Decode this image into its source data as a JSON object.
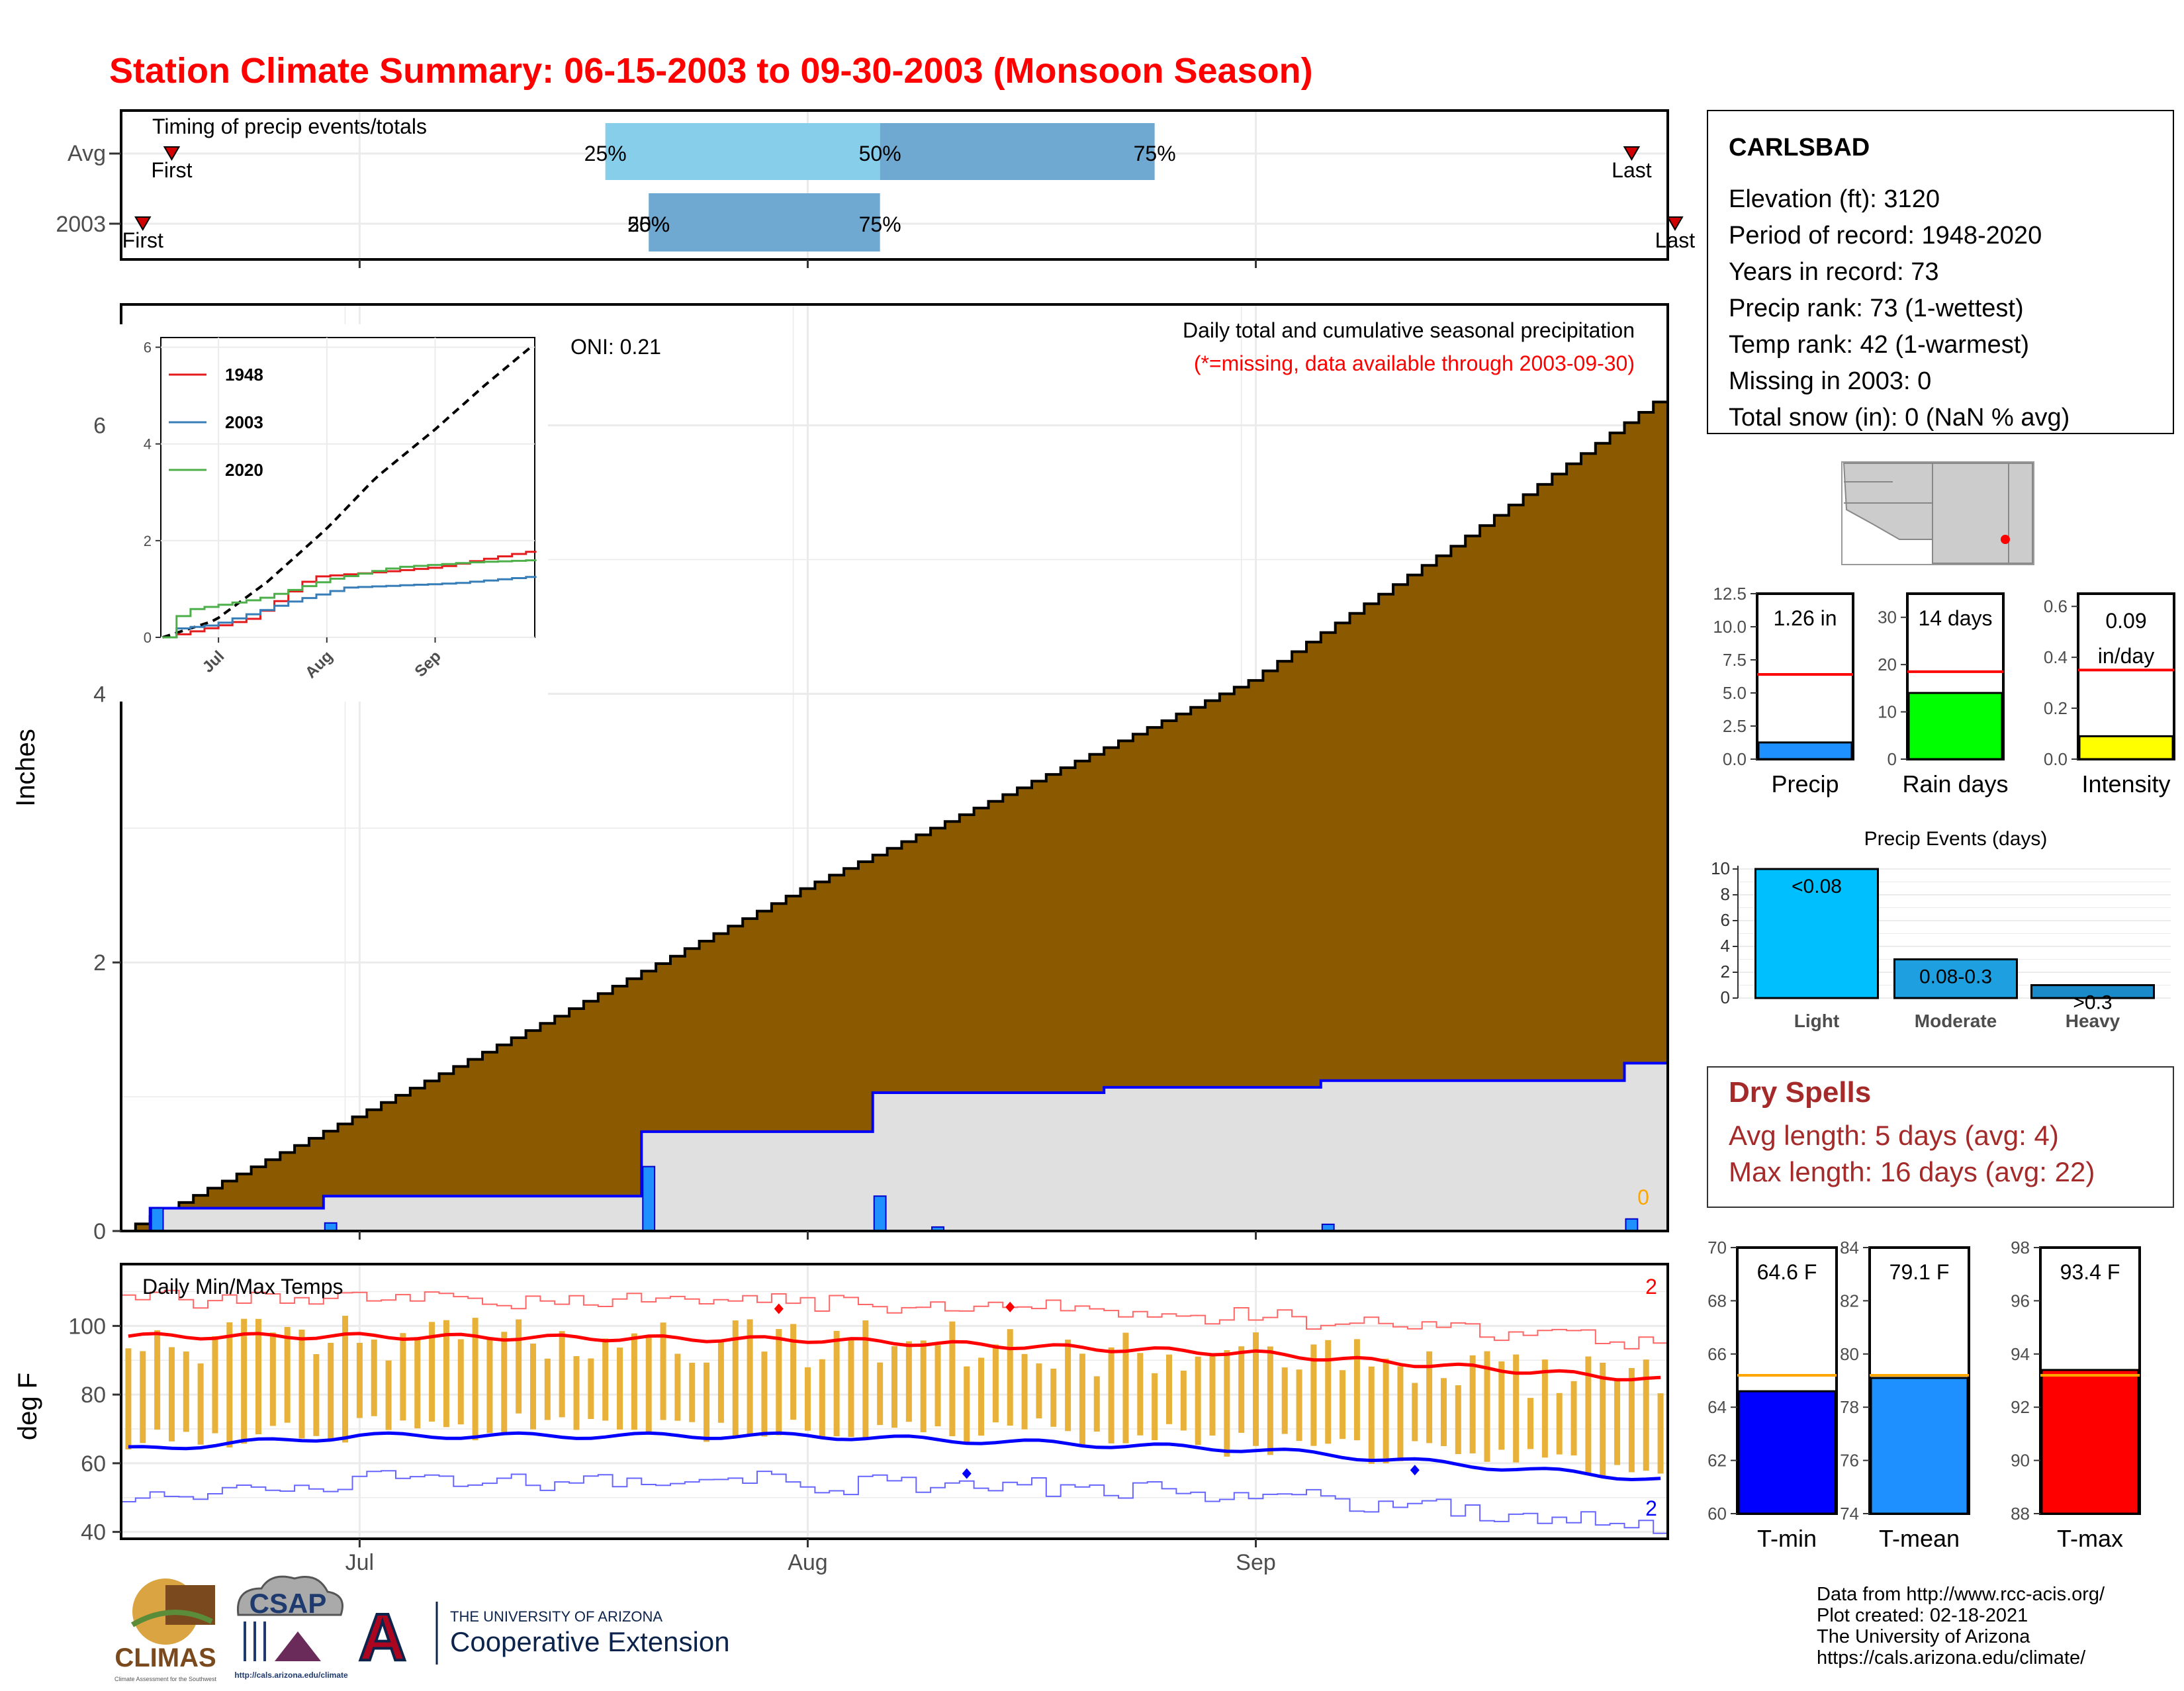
{
  "title": "Station Climate Summary: 06-15-2003 to 09-30-2003 (Monsoon Season)",
  "colors": {
    "title_red": "#ff0000",
    "cumulative_avg_fill": "#8b5a00",
    "year_area_fill": "#e0e0e0",
    "year_line": "#0000ff",
    "daily_bar": "#1e90ff",
    "timing_light": "#87ceeb",
    "timing_dark": "#6fa8d0",
    "temp_bar": "#e8b23a",
    "dry_spell_text": "#a52a2a",
    "precip_bar": "#1e90ff",
    "raindays_bar": "#00ff00",
    "intensity_bar": "#ffff00",
    "events_bar": "#00bfff",
    "tmin_bar": "#0000ff",
    "tmean_bar": "#1e90ff",
    "tmax_bar": "#ff0000",
    "avg_line_red": "#ff0000",
    "avg_line_orange": "#ffa500"
  },
  "timing": {
    "title": "Timing of precip events/totals",
    "rows": [
      {
        "label": "Avg",
        "first": "Jun 18",
        "last": "Sep 27",
        "q25": "Jul 18",
        "q50": "Aug 6",
        "q75": "Aug 25",
        "p25": "25%",
        "p50": "50%",
        "p75": "75%",
        "first_label": "First",
        "last_label": "Last"
      },
      {
        "label": "2003",
        "first": "Jun 16",
        "last": "Sep 30",
        "q25": "Jul 21",
        "q50": "Jul 21",
        "q75": "Aug 6",
        "p25": "25%",
        "p50": "50%",
        "p75": "75%",
        "first_label": "First",
        "last_label": "Last"
      }
    ]
  },
  "main_chart": {
    "ylabel": "Inches",
    "subtitle_line1": "Daily total and cumulative seasonal precipitation",
    "subtitle_line2": "(*=missing, data available through 2003-09-30)",
    "oni_label": "ONI: 0.21",
    "missing_count": "0",
    "x_ticks": [
      "Jul",
      "Aug",
      "Sep"
    ],
    "y_ticks": [
      "0",
      "2",
      "4",
      "6"
    ],
    "inset": {
      "legend": [
        "1948",
        "2003",
        "2020"
      ],
      "legend_colors": [
        "#e41a1c",
        "#377eb8",
        "#4daf4a"
      ],
      "y_ticks": [
        "0",
        "2",
        "4",
        "6"
      ],
      "x_ticks": [
        "Jul",
        "Aug",
        "Sep"
      ]
    }
  },
  "chart_data": [
    {
      "type": "area",
      "title": "Daily total and cumulative seasonal precipitation",
      "ylabel": "Inches",
      "x_range": [
        "2003-06-15",
        "2003-09-30"
      ],
      "ylim": [
        0,
        6.9
      ],
      "series": [
        {
          "name": "Average cumulative",
          "x": [
            "06-15",
            "07-01",
            "07-15",
            "08-01",
            "08-15",
            "09-01",
            "09-15",
            "09-30"
          ],
          "values": [
            0.0,
            0.85,
            1.6,
            2.55,
            3.25,
            4.1,
            5.1,
            6.25
          ]
        },
        {
          "name": "2003 cumulative",
          "x": [
            "06-15",
            "06-17",
            "06-29",
            "07-21",
            "08-06",
            "08-22",
            "09-06",
            "09-27",
            "09-30"
          ],
          "values": [
            0.0,
            0.17,
            0.26,
            0.74,
            1.03,
            1.07,
            1.12,
            1.25,
            1.26
          ]
        },
        {
          "name": "2003 daily",
          "x": [
            "06-17",
            "06-29",
            "07-21",
            "08-06",
            "08-10",
            "09-06",
            "09-27"
          ],
          "values": [
            0.17,
            0.06,
            0.48,
            0.26,
            0.03,
            0.05,
            0.09
          ]
        }
      ]
    },
    {
      "type": "line",
      "title": "",
      "ylabel": "",
      "x_ticks": [
        "Jul",
        "Aug",
        "Sep"
      ],
      "ylim": [
        0,
        6.2
      ],
      "series": [
        {
          "name": "",
          "x": [
            "06-15",
            "06-30",
            "07-15",
            "08-01",
            "08-15",
            "09-01",
            "09-15",
            "09-30"
          ],
          "values": [
            0.0,
            0.35,
            1.15,
            2.25,
            3.3,
            4.3,
            5.2,
            6.1
          ]
        },
        {
          "name": "1948",
          "x": [
            "06-15",
            "07-01",
            "07-10",
            "07-27",
            "08-15",
            "09-01",
            "09-25",
            "09-30"
          ],
          "values": [
            0.0,
            0.25,
            0.4,
            1.25,
            1.35,
            1.45,
            1.75,
            1.8
          ]
        },
        {
          "name": "2003",
          "x": [
            "06-15",
            "06-17",
            "06-29",
            "07-21",
            "08-06",
            "09-06",
            "09-27",
            "09-30"
          ],
          "values": [
            0.0,
            0.17,
            0.26,
            0.74,
            1.03,
            1.12,
            1.25,
            1.26
          ]
        },
        {
          "name": "2020",
          "x": [
            "06-15",
            "06-20",
            "07-12",
            "08-01",
            "08-20",
            "09-10",
            "09-30"
          ],
          "values": [
            0.0,
            0.55,
            0.8,
            1.2,
            1.45,
            1.55,
            1.6
          ]
        }
      ]
    },
    {
      "type": "bar",
      "title": "",
      "categories": [
        "Precip",
        "Rain days",
        "Intensity"
      ],
      "series": [
        {
          "name": "",
          "values": [
            1.26,
            14,
            0.09
          ],
          "labels": [
            "1.26 in",
            "14 days",
            "0.09 in/day"
          ]
        }
      ],
      "averages": [
        6.4,
        18.5,
        0.35
      ],
      "ylims": [
        [
          0,
          12.5
        ],
        [
          0,
          35
        ],
        [
          0,
          0.65
        ]
      ],
      "y_ticks": [
        [
          "0.0",
          "2.5",
          "5.0",
          "7.5",
          "10.0",
          "12.5"
        ],
        [
          "0",
          "10",
          "20",
          "30"
        ],
        [
          "0.0",
          "0.2",
          "0.4",
          "0.6"
        ]
      ]
    },
    {
      "type": "bar",
      "title": "Precip Events (days)",
      "categories": [
        "Light",
        "Moderate",
        "Heavy"
      ],
      "series": [
        {
          "name": "",
          "values": [
            10,
            3,
            1
          ],
          "labels": [
            "<0.08",
            "0.08-0.3",
            ">0.3"
          ]
        }
      ],
      "ylim": [
        0,
        10
      ],
      "y_ticks": [
        "0",
        "2",
        "4",
        "6",
        "8",
        "10"
      ]
    },
    {
      "type": "bar",
      "title": "Daily Min/Max Temps",
      "ylabel": "deg F",
      "x_ticks": [
        "Jul",
        "Aug",
        "Sep"
      ],
      "ylim": [
        38,
        118
      ],
      "y_ticks": [
        "40",
        "60",
        "80",
        "100"
      ],
      "record_high_count": "2",
      "record_low_count": "2",
      "series": [
        {
          "name": "Avg Tmax",
          "x": [
            "06-15",
            "07-01",
            "08-01",
            "09-01",
            "09-30"
          ],
          "values": [
            97,
            97,
            96,
            92,
            84
          ]
        },
        {
          "name": "Avg Tmin",
          "x": [
            "06-15",
            "07-01",
            "08-01",
            "09-01",
            "09-30"
          ],
          "values": [
            64,
            68,
            68,
            64,
            55
          ]
        }
      ]
    },
    {
      "type": "bar",
      "title": "",
      "categories": [
        "T-min",
        "T-mean",
        "T-max"
      ],
      "series": [
        {
          "name": "",
          "values": [
            64.6,
            79.1,
            93.4
          ],
          "labels": [
            "64.6 F",
            "79.1 F",
            "93.4 F"
          ]
        }
      ],
      "averages": [
        65.2,
        79.2,
        93.2
      ],
      "ylims": [
        [
          60,
          70
        ],
        [
          74,
          84
        ],
        [
          88,
          98
        ]
      ],
      "y_ticks": [
        [
          "60",
          "62",
          "64",
          "66",
          "68",
          "70"
        ],
        [
          "74",
          "76",
          "78",
          "80",
          "82",
          "84"
        ],
        [
          "88",
          "90",
          "92",
          "94",
          "96",
          "98"
        ]
      ]
    }
  ],
  "station": {
    "name": "CARLSBAD",
    "lines": [
      "Elevation (ft): 3120",
      "Period of record: 1948-2020",
      "Years in record: 73",
      "Precip rank: 73 (1-wettest)",
      "Temp rank: 42 (1-warmest)",
      "Missing in 2003: 0",
      "Total snow (in): 0 (NaN % avg)"
    ]
  },
  "dry_spells": {
    "title": "Dry Spells",
    "line1": "Avg length: 5 days (avg: 4)",
    "line2": "Max length: 16 days (avg: 22)"
  },
  "footer": {
    "lines": [
      "Data from http://www.rcc-acis.org/",
      "Plot created: 02-18-2021",
      "The University of Arizona",
      "https://cals.arizona.edu/climate/"
    ],
    "climas": "CLIMAS",
    "climas_sub": "Climate Assessment for the Southwest",
    "csap": "CSAP",
    "csap_url": "http://cals.arizona.edu/climate",
    "ua_small": "THE UNIVERSITY OF ARIZONA",
    "ua_big": "Cooperative Extension"
  }
}
